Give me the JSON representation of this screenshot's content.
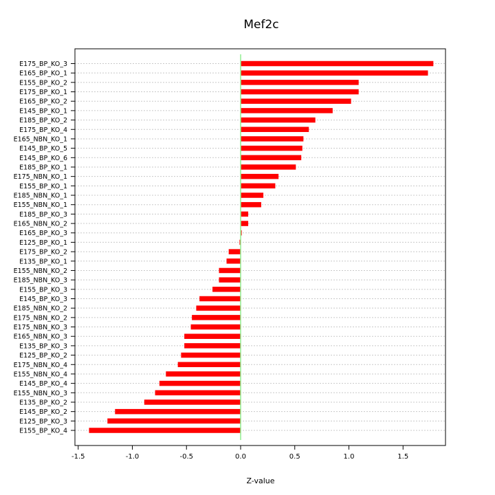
{
  "chart_data": {
    "type": "bar",
    "orientation": "horizontal",
    "title": "Mef2c",
    "xlabel": "Z-value",
    "ylabel": "",
    "xlim": [
      -1.5,
      1.9
    ],
    "x_ticks": [
      -1.5,
      -1.0,
      -0.5,
      0.0,
      0.5,
      1.0,
      1.5
    ],
    "x_tick_labels": [
      "-1.5",
      "-1.0",
      "-0.5",
      "0.0",
      "0.5",
      "1.0",
      "1.5"
    ],
    "grid": true,
    "reference_line": 0,
    "categories": [
      "E175_BP_KO_3",
      "E165_BP_KO_1",
      "E155_BP_KO_2",
      "E175_BP_KO_1",
      "E165_BP_KO_2",
      "E145_BP_KO_1",
      "E185_BP_KO_2",
      "E175_BP_KO_4",
      "E165_NBN_KO_1",
      "E145_BP_KO_5",
      "E145_BP_KO_6",
      "E185_BP_KO_1",
      "E175_NBN_KO_1",
      "E155_BP_KO_1",
      "E185_NBN_KO_1",
      "E155_NBN_KO_1",
      "E185_BP_KO_3",
      "E165_NBN_KO_2",
      "E165_BP_KO_3",
      "E125_BP_KO_1",
      "E175_BP_KO_2",
      "E135_BP_KO_1",
      "E155_NBN_KO_2",
      "E185_NBN_KO_3",
      "E155_BP_KO_3",
      "E145_BP_KO_3",
      "E185_NBN_KO_2",
      "E175_NBN_KO_2",
      "E175_NBN_KO_3",
      "E165_NBN_KO_3",
      "E135_BP_KO_3",
      "E125_BP_KO_2",
      "E175_NBN_KO_4",
      "E155_NBN_KO_4",
      "E145_BP_KO_4",
      "E155_NBN_KO_3",
      "E135_BP_KO_2",
      "E145_BP_KO_2",
      "E125_BP_KO_3",
      "E155_BP_KO_4"
    ],
    "values": [
      1.78,
      1.73,
      1.09,
      1.09,
      1.02,
      0.85,
      0.69,
      0.63,
      0.58,
      0.57,
      0.56,
      0.51,
      0.35,
      0.32,
      0.21,
      0.19,
      0.07,
      0.07,
      0.01,
      -0.01,
      -0.11,
      -0.13,
      -0.2,
      -0.2,
      -0.26,
      -0.38,
      -0.41,
      -0.45,
      -0.46,
      -0.52,
      -0.52,
      -0.55,
      -0.58,
      -0.69,
      -0.75,
      -0.79,
      -0.89,
      -1.16,
      -1.23,
      -1.4
    ],
    "bar_color": "#ff0000",
    "reference_line_color": "#90ee90",
    "grid_color": "#c8c8c8"
  }
}
